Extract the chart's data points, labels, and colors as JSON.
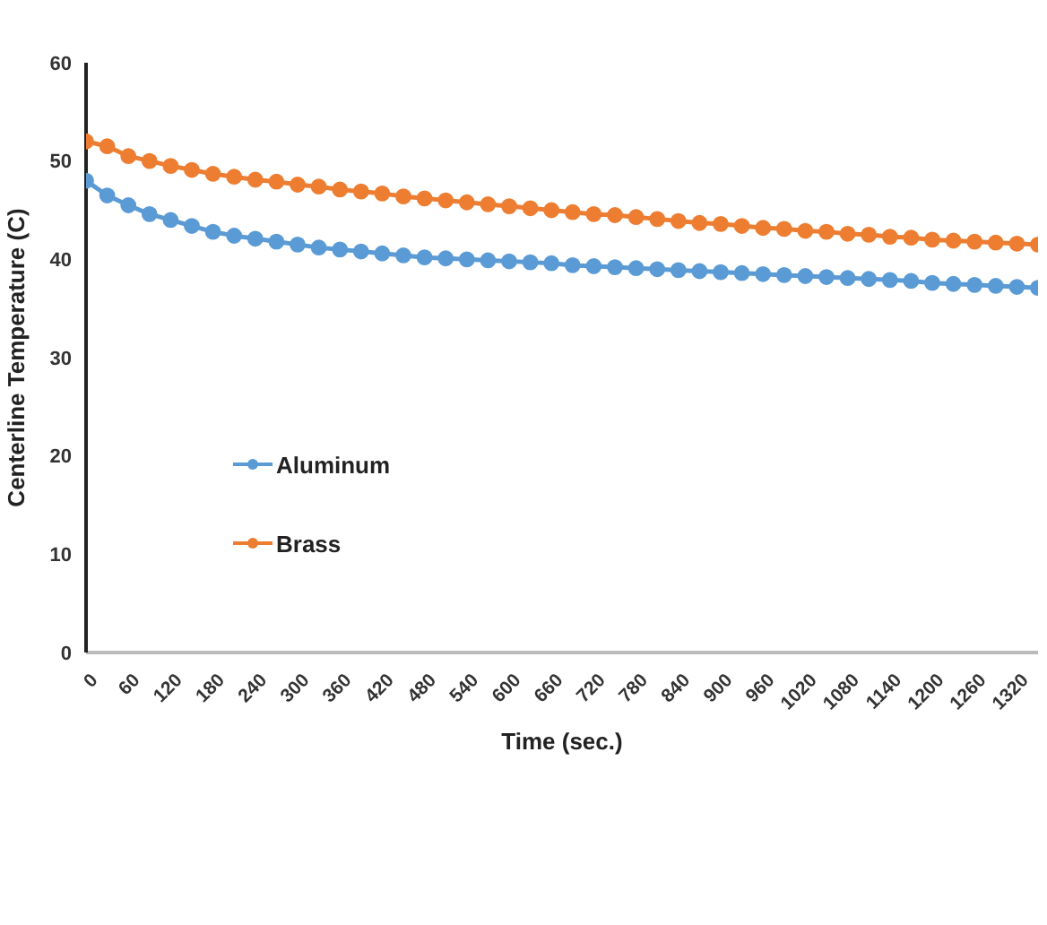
{
  "chart_data": {
    "type": "line",
    "xlabel": "Time (sec.)",
    "ylabel": "Centerline Temperature (C)",
    "x": [
      0,
      30,
      60,
      90,
      120,
      150,
      180,
      210,
      240,
      270,
      300,
      330,
      360,
      390,
      420,
      450,
      480,
      510,
      540,
      570,
      600,
      630,
      660,
      690,
      720,
      750,
      780,
      810,
      840,
      870,
      900,
      930,
      960,
      990,
      1020,
      1050,
      1080,
      1110,
      1140,
      1170,
      1200,
      1230,
      1260,
      1290,
      1320,
      1350
    ],
    "series": [
      {
        "name": "Aluminum",
        "color": "#5b9bd5",
        "values": [
          48,
          46.5,
          45.5,
          44.6,
          44,
          43.4,
          42.8,
          42.4,
          42.1,
          41.8,
          41.5,
          41.2,
          41,
          40.8,
          40.6,
          40.4,
          40.2,
          40.1,
          40,
          39.9,
          39.8,
          39.7,
          39.6,
          39.4,
          39.3,
          39.2,
          39.1,
          39,
          38.9,
          38.8,
          38.7,
          38.6,
          38.5,
          38.4,
          38.3,
          38.2,
          38.1,
          38,
          37.9,
          37.8,
          37.6,
          37.5,
          37.4,
          37.3,
          37.2,
          37.1
        ]
      },
      {
        "name": "Brass",
        "color": "#ed7d31",
        "values": [
          52,
          51.5,
          50.5,
          50,
          49.5,
          49.1,
          48.7,
          48.4,
          48.1,
          47.9,
          47.6,
          47.4,
          47.1,
          46.9,
          46.7,
          46.4,
          46.2,
          46,
          45.8,
          45.6,
          45.4,
          45.2,
          45,
          44.8,
          44.6,
          44.5,
          44.3,
          44.1,
          43.9,
          43.7,
          43.6,
          43.4,
          43.2,
          43.1,
          42.9,
          42.8,
          42.6,
          42.5,
          42.3,
          42.2,
          42,
          41.9,
          41.8,
          41.7,
          41.6,
          41.5
        ]
      }
    ],
    "xlim": [
      0,
      1350
    ],
    "xticks": [
      0,
      60,
      120,
      180,
      240,
      300,
      360,
      420,
      480,
      540,
      600,
      660,
      720,
      780,
      840,
      900,
      960,
      1020,
      1080,
      1140,
      1200,
      1260,
      1320
    ],
    "ylim": [
      0,
      60
    ],
    "yticks": [
      0,
      10,
      20,
      30,
      40,
      50,
      60
    ],
    "grid": false,
    "legend": "left",
    "marker": "circle",
    "line_style": "solid"
  }
}
